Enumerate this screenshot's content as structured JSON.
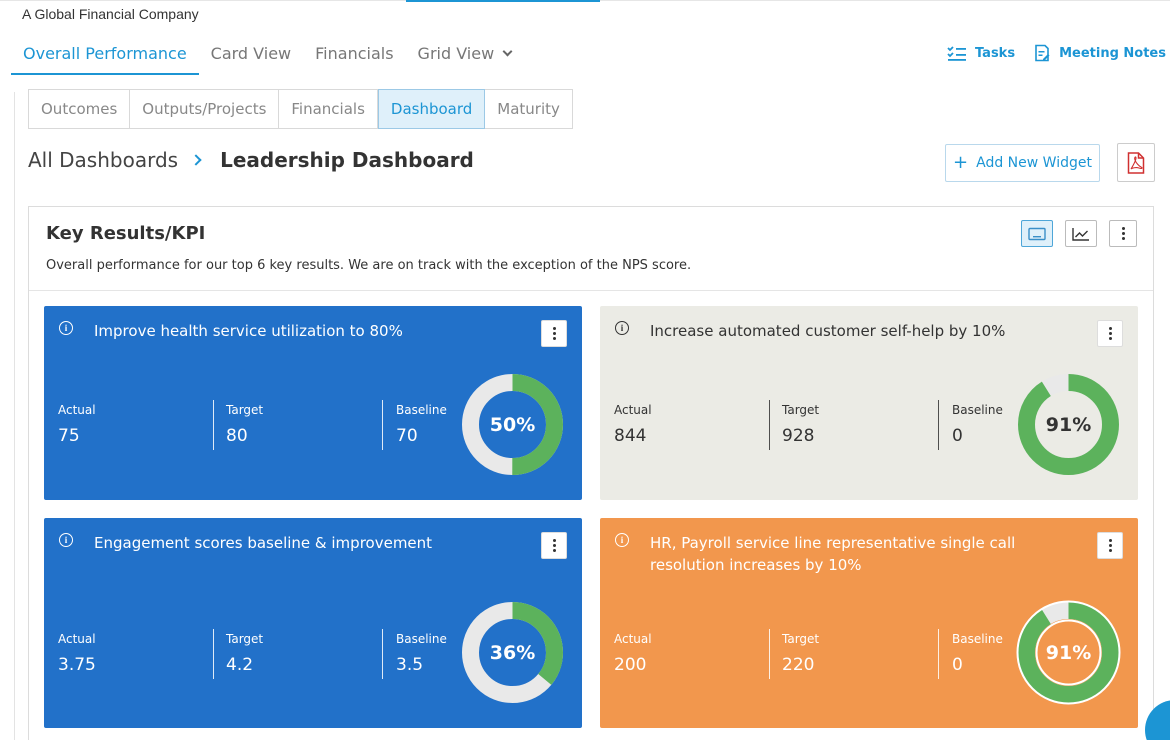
{
  "company": "A Global Financial Company",
  "main_nav": [
    {
      "label": "Overall Performance",
      "active": true
    },
    {
      "label": "Card View",
      "active": false
    },
    {
      "label": "Financials",
      "active": false
    },
    {
      "label": "Grid View",
      "active": false
    }
  ],
  "tools": {
    "tasks": "Tasks",
    "meeting_notes": "Meeting Notes"
  },
  "sub_tabs": [
    {
      "label": "Outcomes",
      "active": false
    },
    {
      "label": "Outputs/Projects",
      "active": false
    },
    {
      "label": "Financials",
      "active": false
    },
    {
      "label": "Dashboard",
      "active": true
    },
    {
      "label": "Maturity",
      "active": false
    }
  ],
  "breadcrumb": {
    "root": "All Dashboards",
    "current": "Leadership Dashboard"
  },
  "add_widget_label": "Add New Widget",
  "panel": {
    "title": "Key Results/KPI",
    "description": "Overall performance for our top 6 key results. We are on track with the exception of the NPS score."
  },
  "cards": [
    {
      "title": "Improve health service utilization to 80%",
      "actual_label": "Actual",
      "actual": "75",
      "target_label": "Target",
      "target": "80",
      "baseline_label": "Baseline",
      "baseline": "70",
      "percent": "50%",
      "progress": 0.5,
      "bg": "#2271c9"
    },
    {
      "title": "Increase automated customer self-help by 10%",
      "actual_label": "Actual",
      "actual": "844",
      "target_label": "Target",
      "target": "928",
      "baseline_label": "Baseline",
      "baseline": "0",
      "percent": "91%",
      "progress": 0.91,
      "bg": "#ebebe5"
    },
    {
      "title": "Engagement scores baseline & improvement",
      "actual_label": "Actual",
      "actual": "3.75",
      "target_label": "Target",
      "target": "4.2",
      "baseline_label": "Baseline",
      "baseline": "3.5",
      "percent": "36%",
      "progress": 0.36,
      "bg": "#2271c9"
    },
    {
      "title": "HR, Payroll service line representative single call resolution increases by 10%",
      "actual_label": "Actual",
      "actual": "200",
      "target_label": "Target",
      "target": "220",
      "baseline_label": "Baseline",
      "baseline": "0",
      "percent": "91%",
      "progress": 0.91,
      "bg": "#f2974d"
    }
  ],
  "colors": {
    "accent": "#1c95d4",
    "progress_green": "#5cb25c",
    "track": "#e9e9e9"
  }
}
